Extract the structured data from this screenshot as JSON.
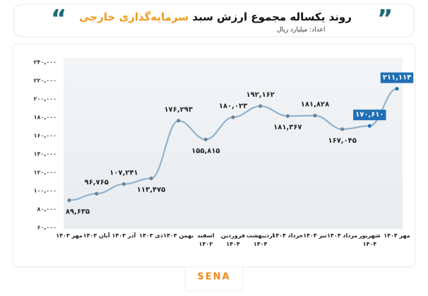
{
  "chart_data": {
    "type": "line",
    "title": "روند یکساله مجموع ارزش سبد",
    "title_highlight": "سرمایه‌گذاری خارجی",
    "subtitle": "اعداد: میلیارد ریال",
    "logo": "SENA",
    "categories": [
      "مهر ۱۴۰۳",
      "آبان ۱۴۰۳",
      "آذر ۱۴۰۳",
      "دی ۱۴۰۳",
      "بهمن ۱۴۰۳",
      "اسفند ۱۴۰۳",
      "فروردین ۱۴۰۴",
      "اردیبهشت ۱۴۰۴",
      "خرداد ۱۴۰۴",
      "تیر ۱۴۰۴",
      "مرداد ۱۴۰۴",
      "شهریور ۱۴۰۴",
      "مهر ۱۴۰۴"
    ],
    "series": [
      {
        "name": "مجموع ارزش سبد",
        "color": "#8fb3cf",
        "values": [
          89635,
          96765,
          107241,
          113475,
          176293,
          155815,
          180023,
          192162,
          181367,
          181828,
          167045,
          170610,
          211114
        ],
        "value_labels": [
          "۸۹,۶۳۵",
          "۹۶,۷۶۵",
          "۱۰۷,۲۴۱",
          "۱۱۳,۴۷۵",
          "۱۷۶,۲۹۳",
          "۱۵۵,۸۱۵",
          "۱۸۰,۰۲۳",
          "۱۹۲,۱۶۲",
          "۱۸۱,۳۶۷",
          "۱۸۱,۸۲۸",
          "۱۶۷,۰۴۵",
          "۱۷۰,۶۱۰",
          "۲۱۱,۱۱۴"
        ]
      }
    ],
    "highlight_color": "#1f6fb5",
    "ylim": [
      60000,
      240000
    ],
    "yticks": [
      {
        "value": 60000,
        "label": "۶۰,۰۰۰"
      },
      {
        "value": 80000,
        "label": "۸۰,۰۰۰"
      },
      {
        "value": 100000,
        "label": "۱۰۰,۰۰۰"
      },
      {
        "value": 120000,
        "label": "۱۲۰,۰۰۰"
      },
      {
        "value": 140000,
        "label": "۱۴۰,۰۰۰"
      },
      {
        "value": 160000,
        "label": "۱۶۰,۰۰۰"
      },
      {
        "value": 180000,
        "label": "۱۸۰,۰۰۰"
      },
      {
        "value": 200000,
        "label": "۲۰۰,۰۰۰"
      },
      {
        "value": 220000,
        "label": "۲۲۰,۰۰۰"
      },
      {
        "value": 240000,
        "label": "۲۴۰,۰۰۰"
      }
    ],
    "grid": false
  }
}
